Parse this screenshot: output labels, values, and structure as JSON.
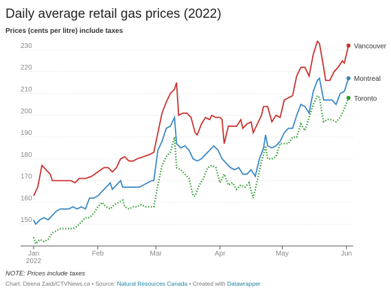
{
  "chart_data": {
    "type": "line",
    "title": "Daily average retail gas prices (2022)",
    "subtitle": "Prices (cents per litre) include taxes",
    "xlim": [
      0,
      155
    ],
    "xticks": [
      {
        "value": 0,
        "label": "Jan"
      },
      {
        "value": 31,
        "label": "Feb"
      },
      {
        "value": 59,
        "label": "Mar"
      },
      {
        "value": 90,
        "label": "Apr"
      },
      {
        "value": 120,
        "label": "May"
      },
      {
        "value": 151,
        "label": "Jun"
      }
    ],
    "x_year_label": "2022",
    "ylim": [
      140,
      235
    ],
    "yticks": [
      150,
      160,
      170,
      180,
      190,
      200,
      210,
      220,
      230
    ],
    "grid": true,
    "series": [
      {
        "name": "Vancouver",
        "color": "#c9302c",
        "dash": false,
        "x": [
          0,
          2,
          4,
          6,
          8,
          9,
          12,
          16,
          18,
          20,
          22,
          25,
          28,
          31,
          34,
          36,
          38,
          40,
          42,
          44,
          46,
          48,
          50,
          53,
          56,
          58,
          60,
          62,
          64,
          66,
          68,
          69,
          70,
          72,
          74,
          76,
          78,
          79,
          81,
          83,
          85,
          86,
          88,
          90,
          91,
          92,
          94,
          96,
          98,
          100,
          101,
          103,
          105,
          106,
          108,
          110,
          111,
          113,
          115,
          117,
          119,
          121,
          123,
          125,
          127,
          129,
          131,
          133,
          135,
          137,
          138,
          140,
          141,
          143,
          145,
          147,
          149,
          150,
          152
        ],
        "values": [
          163,
          167,
          177,
          175,
          173,
          170,
          170,
          170,
          170,
          169,
          171,
          171,
          172,
          174,
          176,
          176,
          174,
          176,
          180,
          181,
          179,
          179,
          180,
          181,
          182,
          183,
          192,
          201,
          206,
          210,
          212,
          215,
          200,
          201,
          201,
          199,
          192,
          191,
          196,
          199,
          198,
          200,
          199,
          199,
          198,
          187,
          195,
          195,
          195,
          198,
          194,
          196,
          197,
          192,
          196,
          200,
          204,
          204,
          197,
          200,
          199,
          207,
          208,
          209,
          218,
          222,
          222,
          218,
          228,
          234,
          233,
          222,
          216,
          216,
          220,
          222,
          225,
          224,
          232
        ]
      },
      {
        "name": "Montreal",
        "color": "#3a87c4",
        "dash": false,
        "x": [
          0,
          1,
          3,
          5,
          7,
          9,
          11,
          13,
          15,
          17,
          19,
          21,
          23,
          25,
          27,
          29,
          31,
          33,
          35,
          37,
          38,
          40,
          42,
          43,
          45,
          47,
          49,
          51,
          53,
          55,
          57,
          58,
          60,
          62,
          64,
          66,
          68,
          69,
          71,
          73,
          75,
          77,
          79,
          81,
          83,
          85,
          87,
          89,
          91,
          93,
          95,
          97,
          99,
          101,
          103,
          105,
          107,
          109,
          111,
          112,
          113,
          115,
          117,
          119,
          121,
          123,
          125,
          127,
          129,
          131,
          133,
          135,
          137,
          138,
          140,
          142,
          144,
          146,
          148,
          150,
          152
        ],
        "values": [
          152,
          150,
          152,
          153,
          152,
          154,
          156,
          157,
          157,
          157,
          158,
          157,
          158,
          157,
          162,
          162,
          163,
          165,
          167,
          169,
          166,
          168,
          170,
          167,
          167,
          167,
          167,
          167,
          168,
          169,
          170,
          170,
          184,
          188,
          194,
          195,
          199,
          187,
          185,
          186,
          184,
          180,
          179,
          180,
          182,
          184,
          186,
          184,
          180,
          178,
          176,
          175,
          176,
          173,
          173,
          175,
          172,
          180,
          185,
          191,
          186,
          185,
          186,
          188,
          192,
          194,
          194,
          200,
          205,
          204,
          201,
          211,
          216,
          217,
          207,
          207,
          207,
          205,
          210,
          211,
          217
        ]
      },
      {
        "name": "Toronto",
        "color": "#2e9b2e",
        "dash": true,
        "x": [
          0,
          1,
          3,
          5,
          7,
          9,
          11,
          13,
          15,
          17,
          19,
          21,
          23,
          25,
          27,
          29,
          31,
          33,
          35,
          37,
          39,
          41,
          43,
          44,
          46,
          48,
          50,
          52,
          54,
          56,
          58,
          60,
          62,
          64,
          66,
          68,
          69,
          71,
          73,
          75,
          77,
          78,
          80,
          82,
          84,
          86,
          88,
          90,
          92,
          94,
          96,
          98,
          100,
          102,
          104,
          106,
          108,
          110,
          111,
          112,
          113,
          115,
          117,
          119,
          121,
          123,
          125,
          127,
          129,
          131,
          133,
          135,
          137,
          138,
          140,
          142,
          144,
          146,
          148,
          150,
          152
        ],
        "values": [
          144,
          141,
          143,
          142,
          143,
          146,
          147,
          148,
          148,
          148,
          148,
          149,
          151,
          153,
          153,
          155,
          158,
          160,
          158,
          157,
          159,
          160,
          161,
          158,
          157,
          158,
          158,
          159,
          158,
          158,
          158,
          168,
          177,
          181,
          183,
          190,
          176,
          175,
          173,
          171,
          163,
          163,
          168,
          171,
          176,
          177,
          176,
          169,
          173,
          168,
          169,
          166,
          168,
          167,
          169,
          162,
          170,
          179,
          182,
          186,
          180,
          180,
          181,
          187,
          187,
          187,
          190,
          190,
          196,
          193,
          199,
          205,
          209,
          208,
          197,
          198,
          198,
          197,
          199,
          203,
          208
        ]
      }
    ],
    "note": "NOTE: Prices include taxes",
    "credit": {
      "prefix": "Chart: Deena Zaidi/CTVNews.ca • Source: ",
      "source": "Natural Resources Canada",
      "middle": " • Created with ",
      "tool": "Datawrapper"
    }
  }
}
